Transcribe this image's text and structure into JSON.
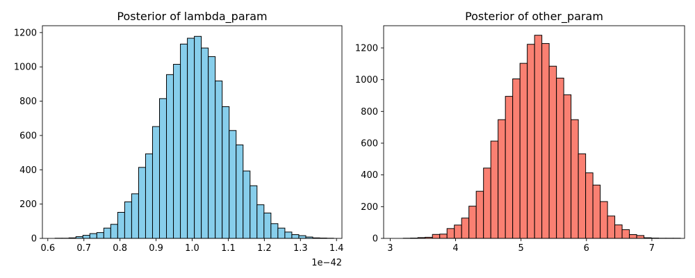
{
  "chart_data": [
    {
      "type": "histogram",
      "title": "Posterior of lambda_param",
      "xlabel": "",
      "ylabel": "",
      "color": "#87CEEB",
      "edgecolor": "#000000",
      "x_offset_label": "1e−42",
      "xlim": [
        0.585,
        1.415
      ],
      "ylim": [
        0,
        1240
      ],
      "xticks": [
        0.6,
        0.7,
        0.8,
        0.9,
        1.0,
        1.1,
        1.2,
        1.3,
        1.4
      ],
      "xtick_labels": [
        "0.6",
        "0.7",
        "0.8",
        "0.9",
        "1.0",
        "1.1",
        "1.2",
        "1.3",
        "1.4"
      ],
      "yticks": [
        0,
        200,
        400,
        600,
        800,
        1000,
        1200
      ],
      "bins": {
        "start": 0.62,
        "width": 0.0193,
        "counts": [
          1,
          1,
          3,
          10,
          18,
          28,
          34,
          60,
          82,
          152,
          213,
          260,
          414,
          493,
          652,
          815,
          955,
          1015,
          1133,
          1167,
          1178,
          1110,
          1060,
          918,
          768,
          629,
          545,
          393,
          307,
          196,
          148,
          86,
          60,
          37,
          22,
          16,
          8,
          3,
          2,
          1
        ]
      }
    },
    {
      "type": "histogram",
      "title": "Posterior of other_param",
      "xlabel": "",
      "ylabel": "",
      "color": "#FA8072",
      "edgecolor": "#000000",
      "xlim": [
        2.9,
        7.5
      ],
      "ylim": [
        0,
        1340
      ],
      "xticks": [
        3,
        4,
        5,
        6,
        7
      ],
      "xtick_labels": [
        "3",
        "4",
        "5",
        "6",
        "7"
      ],
      "yticks": [
        0,
        200,
        400,
        600,
        800,
        1000,
        1200
      ],
      "bins": {
        "start": 3.2,
        "width": 0.1115,
        "counts": [
          1,
          2,
          5,
          7,
          25,
          27,
          62,
          84,
          128,
          203,
          297,
          443,
          613,
          748,
          895,
          1005,
          1103,
          1223,
          1280,
          1228,
          1085,
          1010,
          905,
          748,
          533,
          413,
          336,
          232,
          141,
          85,
          55,
          24,
          18,
          4,
          2,
          1,
          1,
          1
        ]
      }
    }
  ]
}
